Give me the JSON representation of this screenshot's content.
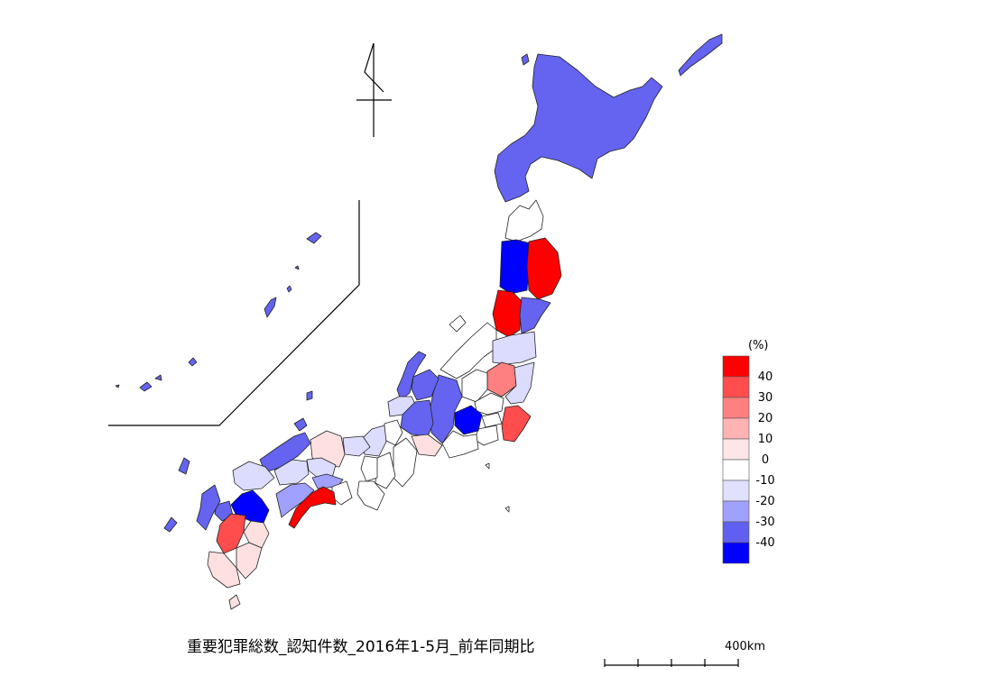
{
  "title": "重要犯罪総数_認知件数_2016年1-5月_前年同期比",
  "legend": {
    "unit": "(%)",
    "labels": [
      "40",
      "30",
      "20",
      "10",
      "0",
      "-10",
      "-20",
      "-30",
      "-40"
    ],
    "colors": [
      "#ff0000",
      "#ff4d4d",
      "#ff8080",
      "#ffb3b3",
      "#ffe6e6",
      "#ffffff",
      "#e0e0ff",
      "#a0a0ff",
      "#6060f0",
      "#0000ff"
    ]
  },
  "scale_bar": {
    "label": "400km"
  },
  "colors": {
    "red": "#ff0000",
    "red_mid": "#ff4d4d",
    "red_light": "#ff8080",
    "pink": "#ffe0e0",
    "white": "#ffffff",
    "blue_pale": "#dcdcff",
    "blue_light": "#a0a0ff",
    "blue_mid": "#6464f0",
    "blue": "#0000ff"
  },
  "icons": {
    "north": "north-arrow-icon"
  }
}
